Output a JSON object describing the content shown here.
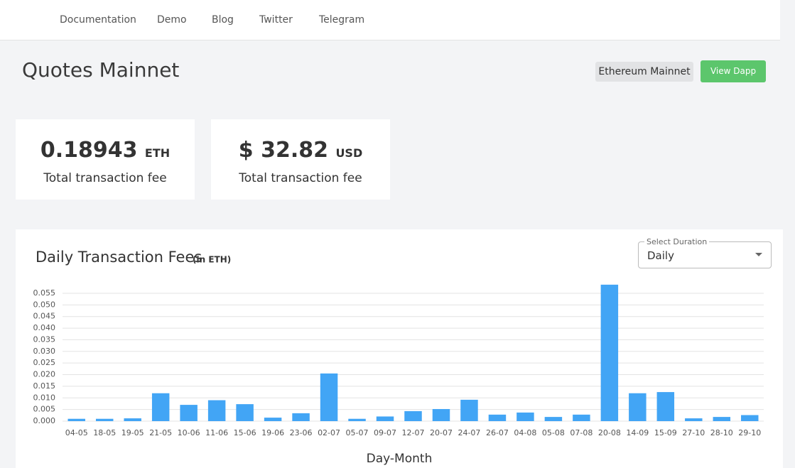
{
  "nav": [
    "Documentation",
    "Demo",
    "Blog",
    "Twitter",
    "Telegram"
  ],
  "header": {
    "title": "Quotes Mainnet",
    "network": "Ethereum Mainnet",
    "button": "View Dapp"
  },
  "cards": [
    {
      "value": "0.18943",
      "unit": "ETH",
      "label": "Total transaction fee"
    },
    {
      "value": "$ 32.82",
      "unit": "USD",
      "label": "Total transaction fee"
    }
  ],
  "select": {
    "label": "Select Duration",
    "value": "Daily"
  },
  "chart_data": {
    "type": "bar",
    "title": "Daily Transaction Fees",
    "subtitle": "(in ETH)",
    "x_label": "Day-Month",
    "categories": [
      "04-05",
      "18-05",
      "19-05",
      "21-05",
      "10-06",
      "11-06",
      "15-06",
      "19-06",
      "23-06",
      "02-07",
      "05-07",
      "09-07",
      "12-07",
      "20-07",
      "24-07",
      "26-07",
      "04-08",
      "05-08",
      "07-08",
      "20-08",
      "14-09",
      "15-09",
      "27-10",
      "28-10",
      "29-10"
    ],
    "values": [
      0.001,
      0.001,
      0.0012,
      0.012,
      0.007,
      0.009,
      0.0073,
      0.0015,
      0.0034,
      0.0205,
      0.001,
      0.002,
      0.0043,
      0.0052,
      0.0092,
      0.0028,
      0.0037,
      0.0018,
      0.0028,
      0.0587,
      0.012,
      0.0125,
      0.0012,
      0.0018,
      0.0026
    ],
    "color": "#42a5f5",
    "ylim": [
      0,
      0.06
    ],
    "yticks": [
      {
        "value": 0,
        "label": "0.000"
      },
      0.005,
      {
        "value": 0.01,
        "label": "0.010"
      },
      0.015,
      {
        "value": 0.02,
        "label": "0.020"
      },
      0.025,
      {
        "value": 0.03,
        "label": "0.030"
      },
      0.035,
      {
        "value": 0.04,
        "label": "0.040"
      },
      0.045,
      {
        "value": 0.05,
        "label": "0.050"
      },
      0.055
    ],
    "grid": true
  }
}
